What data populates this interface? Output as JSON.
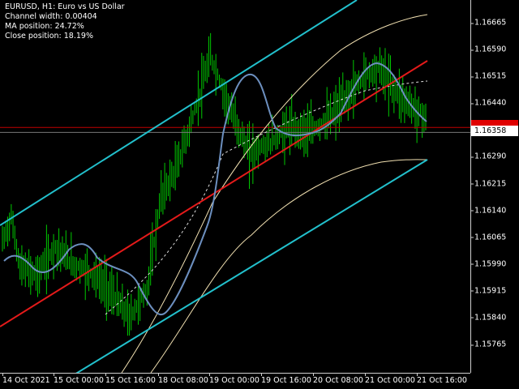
{
  "info": {
    "symbol_line": "EURUSD, H1:  Euro vs US Dollar",
    "channel_width": "Channel width: 0.00404",
    "ma_position": "MA position: 24.72%",
    "close_position": "Close position: 18.19%"
  },
  "price_axis": {
    "labels": [
      "1.16665",
      "1.16590",
      "1.16515",
      "1.16440",
      "1.16290",
      "1.16215",
      "1.16140",
      "1.16065",
      "1.15990",
      "1.15915",
      "1.15840",
      "1.15765"
    ],
    "current_price": "1.16358",
    "red_level": "1.16372"
  },
  "time_axis": {
    "labels": [
      "14 Oct 2021",
      "15 Oct 00:00",
      "15 Oct 16:00",
      "18 Oct 08:00",
      "19 Oct 00:00",
      "19 Oct 16:00",
      "20 Oct 08:00",
      "21 Oct 00:00",
      "21 Oct 16:00"
    ]
  },
  "colors": {
    "background": "#000000",
    "candles": "#00c800",
    "ma_line": "#6c8fbf",
    "regression_line": "#e41a1a",
    "channel_line": "#22c0cc",
    "envelope_line": "#f0dfb0",
    "horizontal_level": "#c00000",
    "axis": "#cfcfcf"
  },
  "chart_data": {
    "type": "line",
    "title": "EURUSD, H1:  Euro vs US Dollar",
    "xlabel": "",
    "ylabel": "",
    "ylim": [
      1.1572,
      1.1688
    ],
    "x": [
      "14 Oct 2021",
      "15 Oct 00:00",
      "15 Oct 16:00",
      "18 Oct 08:00",
      "19 Oct 00:00",
      "19 Oct 16:00",
      "20 Oct 08:00",
      "21 Oct 00:00",
      "21 Oct 16:00"
    ],
    "series": [
      {
        "values": [
          1.1596,
          1.1598,
          1.1596,
          1.1585,
          1.1612,
          1.1632,
          1.1637,
          1.1651,
          1.1639
        ]
      },
      {
        "values": [
          1.1584,
          1.1596,
          1.1607,
          1.1617,
          1.1627,
          1.1637,
          1.1646,
          1.1655,
          1.1662
        ]
      }
    ],
    "horizontal_level": 1.16372,
    "last_price": 1.16358
  }
}
